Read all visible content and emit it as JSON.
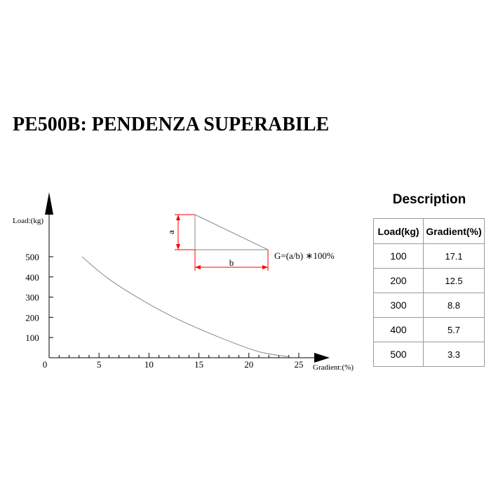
{
  "title": "PE500B: PENDENZA SUPERABILE",
  "chart_data": {
    "type": "line",
    "ylabel": "Load:(kg)",
    "xlabel": "Gradient:(%)",
    "x_ticks": [
      0,
      5,
      10,
      15,
      20,
      25
    ],
    "y_ticks": [
      100,
      200,
      300,
      400,
      500
    ],
    "xlim": [
      0,
      25
    ],
    "ylim": [
      0,
      500
    ],
    "series": [
      {
        "x": [
          3.3,
          5.7,
          8.8,
          12.5,
          17.1,
          21.0,
          24.0
        ],
        "y": [
          500,
          400,
          300,
          200,
          100,
          30,
          5
        ]
      }
    ],
    "line_color": "#8a8a8a",
    "grid": false
  },
  "diagram": {
    "a_label": "a",
    "b_label": "b",
    "formula": "G=(a/b) ∗100%",
    "dimension_color": "#ff0000"
  },
  "description": {
    "title": "Description",
    "headers": [
      "Load(kg)",
      "Gradient(%)"
    ],
    "rows": [
      [
        "100",
        "17.1"
      ],
      [
        "200",
        "12.5"
      ],
      [
        "300",
        "8.8"
      ],
      [
        "400",
        "5.7"
      ],
      [
        "500",
        "3.3"
      ]
    ]
  }
}
